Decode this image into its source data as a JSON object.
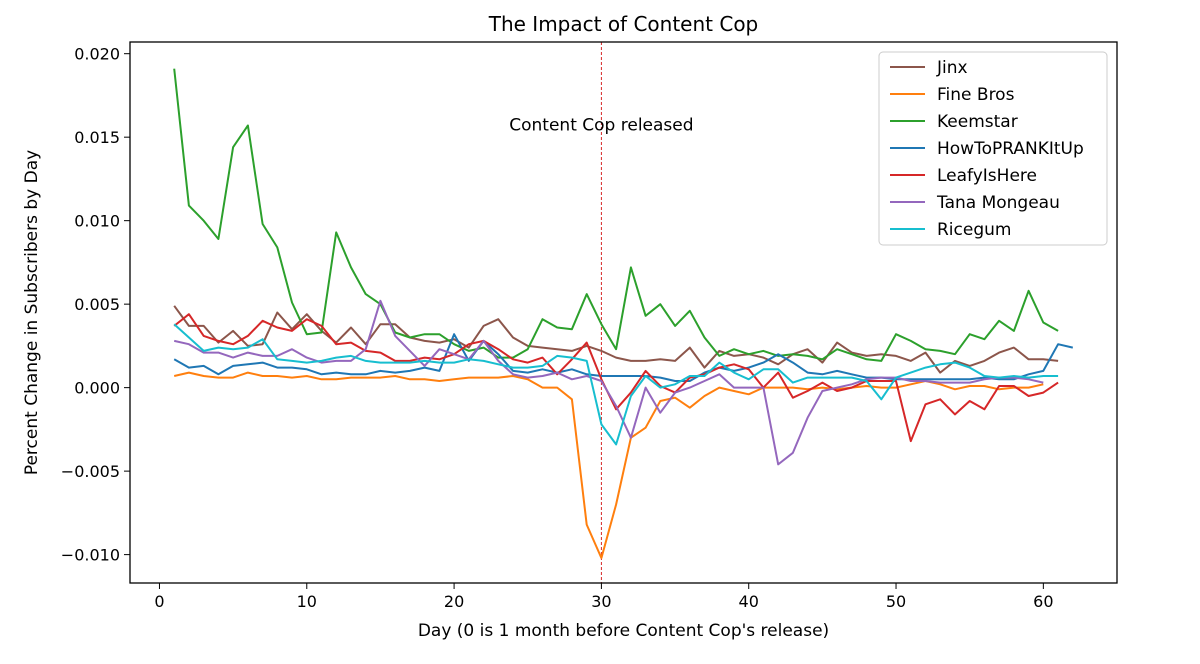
{
  "chart_data": {
    "type": "line",
    "title": "The Impact of Content Cop",
    "xlabel": "Day (0 is 1 month before Content Cop's release)",
    "ylabel": "Percent Change in Subscribers by Day",
    "xlim": [
      -2,
      65
    ],
    "ylim": [
      -0.0117,
      0.0207
    ],
    "xticks": [
      0,
      10,
      20,
      30,
      40,
      50,
      60
    ],
    "xtick_labels": [
      "0",
      "10",
      "20",
      "30",
      "40",
      "50",
      "60"
    ],
    "yticks": [
      -0.01,
      -0.005,
      0.0,
      0.005,
      0.01,
      0.015,
      0.02
    ],
    "ytick_labels": [
      "−0.010",
      "−0.005",
      "0.000",
      "0.005",
      "0.010",
      "0.015",
      "0.020"
    ],
    "grid": false,
    "legend_position": "top-right",
    "vline": {
      "x": 30,
      "color": "#d62728",
      "style": "dashed"
    },
    "annotation": {
      "text": "Content Cop released",
      "x": 30,
      "y": 0.0154
    },
    "series": [
      {
        "name": "Jinx",
        "color": "#8c564b",
        "x": [
          1,
          2,
          3,
          4,
          5,
          6,
          7,
          8,
          9,
          10,
          11,
          12,
          13,
          14,
          15,
          16,
          17,
          18,
          19,
          20,
          21,
          22,
          23,
          24,
          25,
          26,
          27,
          28,
          29,
          30,
          31,
          32,
          33,
          34,
          35,
          36,
          37,
          38,
          39,
          40,
          41,
          42,
          43,
          44,
          45,
          46,
          47,
          48,
          49,
          50,
          51,
          52,
          53,
          54,
          55,
          56,
          57,
          58,
          59,
          60,
          61
        ],
        "values": [
          0.0049,
          0.0037,
          0.0037,
          0.0027,
          0.0034,
          0.0025,
          0.0026,
          0.0045,
          0.0035,
          0.0044,
          0.0034,
          0.0027,
          0.0036,
          0.0026,
          0.0038,
          0.0038,
          0.003,
          0.0028,
          0.0027,
          0.0029,
          0.0024,
          0.0037,
          0.0041,
          0.003,
          0.0025,
          0.0024,
          0.0023,
          0.0022,
          0.0025,
          0.0022,
          0.0018,
          0.0016,
          0.0016,
          0.0017,
          0.0016,
          0.0024,
          0.0012,
          0.0022,
          0.0019,
          0.002,
          0.0018,
          0.0014,
          0.002,
          0.0023,
          0.0015,
          0.0027,
          0.0021,
          0.0019,
          0.002,
          0.0019,
          0.0016,
          0.0021,
          0.0009,
          0.0016,
          0.0013,
          0.0016,
          0.0021,
          0.0024,
          0.0017,
          0.0017,
          0.0016
        ]
      },
      {
        "name": "Fine Bros",
        "color": "#ff7f0e",
        "x": [
          1,
          2,
          3,
          4,
          5,
          6,
          7,
          8,
          9,
          10,
          11,
          12,
          13,
          14,
          15,
          16,
          17,
          18,
          19,
          20,
          21,
          22,
          23,
          24,
          25,
          26,
          27,
          28,
          29,
          30,
          31,
          32,
          33,
          34,
          35,
          36,
          37,
          38,
          39,
          40,
          41,
          42,
          43,
          44,
          45,
          46,
          47,
          48,
          49,
          50,
          51,
          52,
          53,
          54,
          55,
          56,
          57,
          58,
          59,
          60
        ],
        "values": [
          0.0007,
          0.0009,
          0.0007,
          0.0006,
          0.0006,
          0.0009,
          0.0007,
          0.0007,
          0.0006,
          0.0007,
          0.0005,
          0.0005,
          0.0006,
          0.0006,
          0.0006,
          0.0007,
          0.0005,
          0.0005,
          0.0004,
          0.0005,
          0.0006,
          0.0006,
          0.0006,
          0.0007,
          0.0005,
          0.0,
          0.0,
          -0.0007,
          -0.0082,
          -0.0102,
          -0.007,
          -0.003,
          -0.0024,
          -0.0008,
          -0.0006,
          -0.0012,
          -0.0005,
          0.0,
          -0.0002,
          -0.0004,
          0.0,
          0.0,
          0.0,
          -0.0001,
          0.0,
          -0.0001,
          0.0,
          0.0001,
          0.0,
          0.0,
          0.0002,
          0.0004,
          0.0002,
          -0.0001,
          0.0001,
          0.0001,
          -0.0001,
          0.0,
          0.0,
          0.0002
        ]
      },
      {
        "name": "Keemstar",
        "color": "#2ca02c",
        "x": [
          1,
          2,
          3,
          4,
          5,
          6,
          7,
          8,
          9,
          10,
          11,
          12,
          13,
          14,
          15,
          16,
          17,
          18,
          19,
          20,
          21,
          22,
          23,
          24,
          25,
          26,
          27,
          28,
          29,
          30,
          31,
          32,
          33,
          34,
          35,
          36,
          37,
          38,
          39,
          40,
          41,
          42,
          43,
          44,
          45,
          46,
          47,
          48,
          49,
          50,
          51,
          52,
          53,
          54,
          55,
          56,
          57,
          58,
          59,
          60,
          61
        ],
        "values": [
          0.0191,
          0.0109,
          0.01,
          0.0089,
          0.0144,
          0.0157,
          0.0098,
          0.0084,
          0.0051,
          0.0032,
          0.0033,
          0.0093,
          0.0072,
          0.0056,
          0.005,
          0.0033,
          0.003,
          0.0032,
          0.0032,
          0.0026,
          0.0022,
          0.0024,
          0.0018,
          0.0018,
          0.0023,
          0.0041,
          0.0036,
          0.0035,
          0.0056,
          0.0038,
          0.0023,
          0.0072,
          0.0043,
          0.005,
          0.0037,
          0.0046,
          0.003,
          0.0019,
          0.0023,
          0.002,
          0.0022,
          0.0019,
          0.002,
          0.0019,
          0.0017,
          0.0023,
          0.002,
          0.0017,
          0.0016,
          0.0032,
          0.0028,
          0.0023,
          0.0022,
          0.002,
          0.0032,
          0.0029,
          0.004,
          0.0034,
          0.0058,
          0.0039,
          0.0034
        ]
      },
      {
        "name": "HowToPRANKItUp",
        "color": "#1f77b4",
        "x": [
          1,
          2,
          3,
          4,
          5,
          6,
          7,
          8,
          9,
          10,
          11,
          12,
          13,
          14,
          15,
          16,
          17,
          18,
          19,
          20,
          21,
          22,
          23,
          24,
          25,
          26,
          27,
          28,
          29,
          30,
          31,
          32,
          33,
          34,
          35,
          36,
          37,
          38,
          39,
          40,
          41,
          42,
          43,
          44,
          45,
          46,
          47,
          48,
          49,
          50,
          51,
          52,
          53,
          54,
          55,
          56,
          57,
          58,
          59,
          60,
          61,
          62
        ],
        "values": [
          0.0017,
          0.0012,
          0.0013,
          0.0008,
          0.0013,
          0.0014,
          0.0015,
          0.0012,
          0.0012,
          0.0011,
          0.0008,
          0.0009,
          0.0008,
          0.0008,
          0.001,
          0.0009,
          0.001,
          0.0012,
          0.001,
          0.0032,
          0.0016,
          0.0028,
          0.002,
          0.001,
          0.0009,
          0.0011,
          0.0009,
          0.0011,
          0.0008,
          0.0007,
          0.0007,
          0.0007,
          0.0007,
          0.0006,
          0.0004,
          0.0004,
          0.0009,
          0.0012,
          0.001,
          0.0012,
          0.0015,
          0.002,
          0.0015,
          0.0009,
          0.0008,
          0.001,
          0.0008,
          0.0006,
          0.0006,
          0.0005,
          0.0005,
          0.0005,
          0.0005,
          0.0005,
          0.0005,
          0.0006,
          0.0005,
          0.0005,
          0.0008,
          0.001,
          0.0026,
          0.0024
        ]
      },
      {
        "name": "LeafyIsHere",
        "color": "#d62728",
        "x": [
          1,
          2,
          3,
          4,
          5,
          6,
          7,
          8,
          9,
          10,
          11,
          12,
          13,
          14,
          15,
          16,
          17,
          18,
          19,
          20,
          21,
          22,
          23,
          24,
          25,
          26,
          27,
          28,
          29,
          30,
          31,
          32,
          33,
          34,
          35,
          36,
          37,
          38,
          39,
          40,
          41,
          42,
          43,
          44,
          45,
          46,
          47,
          48,
          49,
          50,
          51,
          52,
          53,
          54,
          55,
          56,
          57,
          58,
          59,
          60,
          61
        ],
        "values": [
          0.0037,
          0.0044,
          0.0031,
          0.0028,
          0.0026,
          0.0031,
          0.004,
          0.0036,
          0.0034,
          0.0041,
          0.0037,
          0.0026,
          0.0027,
          0.0022,
          0.0021,
          0.0016,
          0.0016,
          0.0018,
          0.0017,
          0.002,
          0.0026,
          0.0028,
          0.0023,
          0.0017,
          0.0015,
          0.0018,
          0.0008,
          0.0017,
          0.0027,
          0.0005,
          -0.0013,
          -0.0003,
          0.001,
          0.0001,
          -0.0003,
          0.0006,
          0.0008,
          0.0012,
          0.0014,
          0.0011,
          0.0,
          0.0009,
          -0.0006,
          -0.0002,
          0.0003,
          -0.0002,
          0.0,
          0.0004,
          0.0004,
          0.0004,
          -0.0032,
          -0.001,
          -0.0007,
          -0.0016,
          -0.0008,
          -0.0013,
          0.0001,
          0.0001,
          -0.0005,
          -0.0003,
          0.0003
        ]
      },
      {
        "name": "Tana Mongeau",
        "color": "#9467bd",
        "x": [
          1,
          2,
          3,
          4,
          5,
          6,
          7,
          8,
          9,
          10,
          11,
          12,
          13,
          14,
          15,
          16,
          17,
          18,
          19,
          20,
          21,
          22,
          23,
          24,
          25,
          26,
          27,
          28,
          29,
          30,
          31,
          32,
          33,
          34,
          35,
          36,
          37,
          38,
          39,
          40,
          41,
          42,
          43,
          44,
          45,
          46,
          47,
          48,
          49,
          50,
          51,
          52,
          53,
          54,
          55,
          56,
          57,
          58,
          59,
          60
        ],
        "values": [
          0.0028,
          0.0026,
          0.0021,
          0.0021,
          0.0018,
          0.0021,
          0.0019,
          0.0019,
          0.0023,
          0.0018,
          0.0015,
          0.0016,
          0.0016,
          0.0023,
          0.0052,
          0.0031,
          0.0022,
          0.0013,
          0.0023,
          0.002,
          0.0017,
          0.0028,
          0.0016,
          0.0008,
          0.0006,
          0.0007,
          0.0009,
          0.0005,
          0.0007,
          0.0004,
          -0.0011,
          -0.003,
          0.0,
          -0.0015,
          -0.0003,
          0.0,
          0.0004,
          0.0008,
          0.0,
          0.0,
          0.0,
          -0.0046,
          -0.0039,
          -0.0018,
          -0.0002,
          0.0,
          0.0002,
          0.0005,
          0.0006,
          0.0006,
          0.0004,
          0.0004,
          0.0003,
          0.0003,
          0.0003,
          0.0005,
          0.0006,
          0.0006,
          0.0005,
          0.0003
        ]
      },
      {
        "name": "Ricegum",
        "color": "#17becf",
        "x": [
          1,
          2,
          3,
          4,
          5,
          6,
          7,
          8,
          9,
          10,
          11,
          12,
          13,
          14,
          15,
          16,
          17,
          18,
          19,
          20,
          21,
          22,
          23,
          24,
          25,
          26,
          27,
          28,
          29,
          30,
          31,
          32,
          33,
          34,
          35,
          36,
          37,
          38,
          39,
          40,
          41,
          42,
          43,
          44,
          45,
          46,
          47,
          48,
          49,
          50,
          51,
          52,
          53,
          54,
          55,
          56,
          57,
          58,
          59,
          60,
          61
        ],
        "values": [
          0.0038,
          0.003,
          0.0022,
          0.0024,
          0.0023,
          0.0024,
          0.0029,
          0.0017,
          0.0016,
          0.0015,
          0.0016,
          0.0018,
          0.0019,
          0.0016,
          0.0015,
          0.0015,
          0.0015,
          0.0016,
          0.0015,
          0.0015,
          0.0017,
          0.0016,
          0.0014,
          0.0012,
          0.0012,
          0.0013,
          0.0019,
          0.0018,
          0.0016,
          -0.0022,
          -0.0034,
          -0.0005,
          0.0007,
          0.0,
          0.0002,
          0.0007,
          0.0007,
          0.0015,
          0.0009,
          0.0005,
          0.0011,
          0.0011,
          0.0003,
          0.0006,
          0.0006,
          0.0006,
          0.0006,
          0.0004,
          -0.0007,
          0.0006,
          0.0009,
          0.0012,
          0.0014,
          0.0015,
          0.0012,
          0.0007,
          0.0006,
          0.0007,
          0.0006,
          0.0007,
          0.0007
        ]
      }
    ]
  }
}
